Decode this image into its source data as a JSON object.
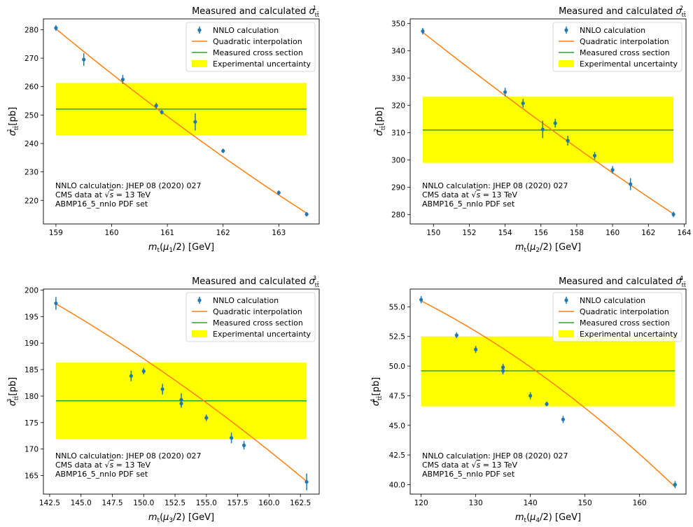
{
  "legend": {
    "nnlo": "NNLO calculation",
    "quad": "Quadratic interpolation",
    "meas": "Measured cross section",
    "unc": "Experimental uncertainty"
  },
  "notes": {
    "line1": "NNLO calculation: JHEP 08 (2020) 027",
    "line2_pre": "CMS data at ",
    "line2_post": " = 13 TeV",
    "line3": "ABMP16_5_nnlo PDF set"
  },
  "colors": {
    "points": "#1f77b4",
    "interpolation": "#ff7f0e",
    "measured": "#2ca02c",
    "uncertainty": "#ffff00"
  },
  "chart_data": [
    {
      "type": "scatter",
      "title": "Measured and calculated σ_tt^1",
      "title_sup": "1",
      "xlabel": "m_t(μ_1/2) [GeV]",
      "x_sub": "1",
      "ylabel": "σ_tt^1 [pb]",
      "xlim": [
        158.775,
        163.725
      ],
      "ylim": [
        211.7,
        283.8
      ],
      "xticks": [
        159,
        160,
        161,
        162,
        163
      ],
      "yticks": [
        220,
        230,
        240,
        250,
        260,
        270,
        280
      ],
      "tick_decimals": 0,
      "legend_position": "top-right",
      "series": [
        {
          "name": "NNLO calculation",
          "x": [
            159.0,
            159.5,
            160.2,
            160.8,
            160.9,
            161.5,
            162.0,
            163.0,
            163.5
          ],
          "y": [
            280.6,
            269.5,
            262.5,
            253.3,
            251.0,
            247.6,
            237.4,
            222.7,
            215.1
          ],
          "yerr": [
            1.0,
            2.2,
            1.6,
            1.0,
            0.8,
            3.0,
            0.8,
            0.8,
            0.8
          ]
        },
        {
          "name": "Quadratic interpolation",
          "x": [
            159.0,
            163.5
          ],
          "y": [
            280.3,
            215.5
          ],
          "curvature": 2.0
        },
        {
          "name": "Measured cross section",
          "x": [
            159.0,
            163.5
          ],
          "y": [
            252.1,
            252.1
          ]
        },
        {
          "name": "Experimental uncertainty",
          "x": [
            159.0,
            163.5
          ],
          "y_low": 242.9,
          "y_high": 261.3
        }
      ]
    },
    {
      "type": "scatter",
      "title": "Measured and calculated σ_tt^2",
      "title_sup": "2",
      "xlabel": "m_t(μ_2/2) [GeV]",
      "x_sub": "2",
      "ylabel": "σ_tt^2 [pb]",
      "xlim": [
        148.7,
        164.1
      ],
      "ylim": [
        276.6,
        351.7
      ],
      "xticks": [
        150,
        152,
        154,
        156,
        158,
        160,
        162,
        164
      ],
      "yticks": [
        280,
        290,
        300,
        310,
        320,
        330,
        340,
        350
      ],
      "tick_decimals": 0,
      "legend_position": "top-right",
      "series": [
        {
          "name": "NNLO calculation",
          "x": [
            149.4,
            154.0,
            155.0,
            156.1,
            156.8,
            157.5,
            159.0,
            160.0,
            161.0,
            163.4
          ],
          "y": [
            347.2,
            324.9,
            320.8,
            311.2,
            313.5,
            307.1,
            301.6,
            296.4,
            291.2,
            280.1
          ],
          "yerr": [
            1.2,
            1.6,
            1.6,
            3.2,
            1.6,
            1.8,
            1.4,
            1.4,
            2.2,
            1.0
          ]
        },
        {
          "name": "Quadratic interpolation",
          "x": [
            149.4,
            163.4
          ],
          "y": [
            346.8,
            280.3
          ],
          "curvature": 1.5
        },
        {
          "name": "Measured cross section",
          "x": [
            149.4,
            163.4
          ],
          "y": [
            311.0,
            311.0
          ]
        },
        {
          "name": "Experimental uncertainty",
          "x": [
            149.4,
            163.4
          ],
          "y_low": 299.0,
          "y_high": 323.2
        }
      ]
    },
    {
      "type": "scatter",
      "title": "Measured and calculated σ_tt^3",
      "title_sup": "3",
      "xlabel": "m_t(μ_3/2) [GeV]",
      "x_sub": "3",
      "ylabel": "σ_tt^3 [pb]",
      "xlim": [
        142.0,
        164.0
      ],
      "ylim": [
        161.5,
        200.2
      ],
      "xticks": [
        142.5,
        145.0,
        147.5,
        150.0,
        152.5,
        155.0,
        157.5,
        160.0,
        162.5
      ],
      "yticks": [
        165,
        170,
        175,
        180,
        185,
        190,
        195,
        200
      ],
      "tick_decimals": 1,
      "xtick_decimals": 1,
      "ytick_decimals": 0,
      "legend_position": "top-right",
      "series": [
        {
          "name": "NNLO calculation",
          "x": [
            143.0,
            149.0,
            150.0,
            151.5,
            153.0,
            153.0,
            155.0,
            157.0,
            158.0,
            163.0
          ],
          "y": [
            197.5,
            183.8,
            184.7,
            181.3,
            179.3,
            178.6,
            175.9,
            172.1,
            170.7,
            163.8
          ],
          "yerr": [
            1.2,
            1.0,
            0.6,
            1.0,
            1.2,
            0.8,
            0.6,
            1.0,
            0.8,
            1.6
          ]
        },
        {
          "name": "Quadratic interpolation",
          "x": [
            143.0,
            163.0
          ],
          "y": [
            197.4,
            163.9
          ],
          "curvature": -1.5
        },
        {
          "name": "Measured cross section",
          "x": [
            143.0,
            163.0
          ],
          "y": [
            179.1,
            179.1
          ]
        },
        {
          "name": "Experimental uncertainty",
          "x": [
            143.0,
            163.0
          ],
          "y_low": 171.9,
          "y_high": 186.3
        }
      ]
    },
    {
      "type": "scatter",
      "title": "Measured and calculated σ_tt^4",
      "title_sup": "4",
      "xlabel": "m_t(μ_4/2) [GeV]",
      "x_sub": "4",
      "ylabel": "σ_tt^4 [pb]",
      "xlim": [
        118.0,
        168.5
      ],
      "ylim": [
        39.2,
        56.5
      ],
      "xticks": [
        120,
        130,
        140,
        150,
        160
      ],
      "yticks": [
        40.0,
        42.5,
        45.0,
        47.5,
        50.0,
        52.5,
        55.0
      ],
      "xtick_decimals": 0,
      "ytick_decimals": 1,
      "legend_position": "top-right",
      "series": [
        {
          "name": "NNLO calculation",
          "x": [
            120,
            126.5,
            130,
            135,
            135,
            140,
            143,
            146,
            166.5
          ],
          "y": [
            55.6,
            52.6,
            51.4,
            49.9,
            49.6,
            47.5,
            46.8,
            45.5,
            40.0
          ],
          "yerr": [
            0.3,
            0.25,
            0.3,
            0.3,
            0.3,
            0.3,
            0.2,
            0.3,
            0.3
          ]
        },
        {
          "name": "Quadratic interpolation",
          "x": [
            120,
            166.5
          ],
          "y": [
            55.5,
            39.8
          ],
          "curvature": -1.2
        },
        {
          "name": "Measured cross section",
          "x": [
            120,
            166.5
          ],
          "y": [
            49.6,
            49.6
          ]
        },
        {
          "name": "Experimental uncertainty",
          "x": [
            120,
            166.5
          ],
          "y_low": 46.6,
          "y_high": 52.5
        }
      ]
    }
  ]
}
